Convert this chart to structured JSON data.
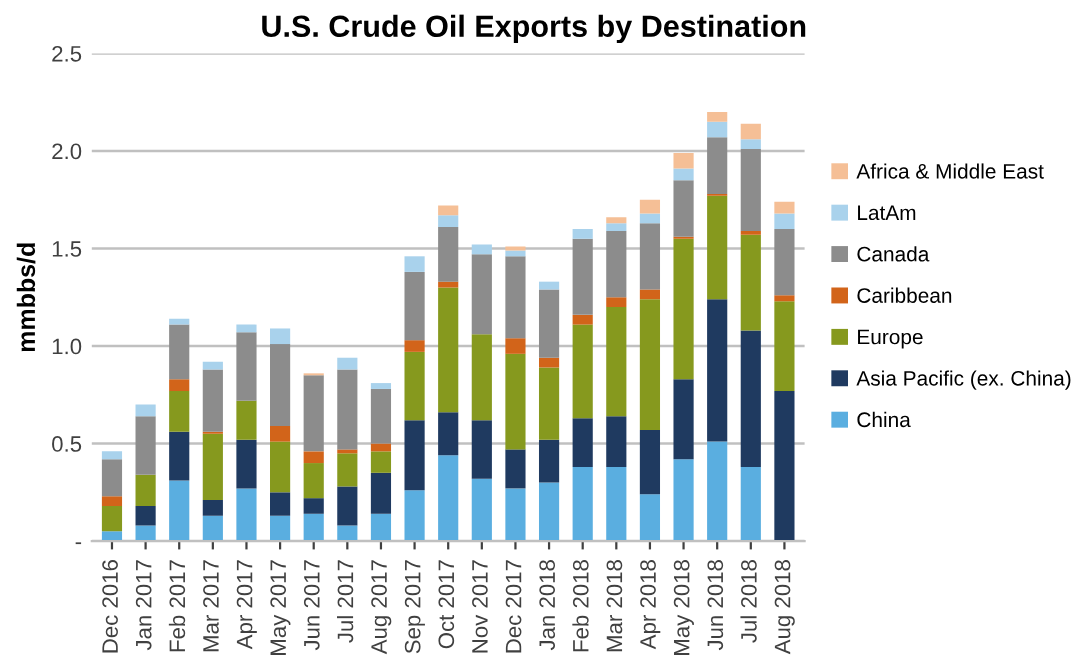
{
  "chart_data": {
    "type": "bar",
    "stacked": true,
    "title": "U.S. Crude Oil Exports by Destination",
    "ylabel": "mmbbs/d",
    "categories": [
      "Dec 2016",
      "Jan 2017",
      "Feb 2017",
      "Mar 2017",
      "Apr 2017",
      "May 2017",
      "Jun 2017",
      "Jul 2017",
      "Aug 2017",
      "Sep 2017",
      "Oct 2017",
      "Nov 2017",
      "Dec 2017",
      "Jan 2018",
      "Feb 2018",
      "Mar 2018",
      "Apr 2018",
      "May 2018",
      "Jun 2018",
      "Jul 2018",
      "Aug 2018"
    ],
    "series": [
      {
        "name": "China",
        "color": "#5aaee0",
        "values": [
          0.05,
          0.08,
          0.31,
          0.13,
          0.27,
          0.13,
          0.14,
          0.08,
          0.14,
          0.26,
          0.44,
          0.32,
          0.27,
          0.3,
          0.38,
          0.38,
          0.24,
          0.42,
          0.51,
          0.38,
          0
        ]
      },
      {
        "name": "Asia Pacific (ex. China)",
        "color": "#1f3a60",
        "values": [
          0,
          0.1,
          0.25,
          0.08,
          0.25,
          0.12,
          0.08,
          0.2,
          0.21,
          0.36,
          0.22,
          0.3,
          0.2,
          0.22,
          0.25,
          0.26,
          0.33,
          0.41,
          0.73,
          0.7,
          0.77
        ]
      },
      {
        "name": "Europe",
        "color": "#86991e",
        "values": [
          0.13,
          0.16,
          0.21,
          0.34,
          0.2,
          0.26,
          0.18,
          0.17,
          0.11,
          0.35,
          0.64,
          0.44,
          0.49,
          0.37,
          0.48,
          0.56,
          0.67,
          0.72,
          0.53,
          0.49,
          0.46
        ]
      },
      {
        "name": "Caribbean",
        "color": "#d2641a",
        "values": [
          0.05,
          0,
          0.06,
          0.01,
          0,
          0.08,
          0.06,
          0.02,
          0.04,
          0.06,
          0.03,
          0,
          0.08,
          0.05,
          0.05,
          0.05,
          0.05,
          0.01,
          0.01,
          0.02,
          0.03
        ]
      },
      {
        "name": "Canada",
        "color": "#8c8c8c",
        "values": [
          0.19,
          0.3,
          0.28,
          0.32,
          0.35,
          0.42,
          0.39,
          0.41,
          0.28,
          0.35,
          0.28,
          0.41,
          0.42,
          0.35,
          0.39,
          0.34,
          0.34,
          0.29,
          0.29,
          0.42,
          0.34
        ]
      },
      {
        "name": "LatAm",
        "color": "#a9d2ec",
        "values": [
          0.04,
          0.06,
          0.03,
          0.04,
          0.04,
          0.08,
          0,
          0.06,
          0.03,
          0.08,
          0.06,
          0.05,
          0.03,
          0.04,
          0.05,
          0.04,
          0.05,
          0.06,
          0.08,
          0.05,
          0.08
        ]
      },
      {
        "name": "Africa & Middle East",
        "color": "#f5bf96",
        "values": [
          0,
          0,
          0,
          0,
          0,
          0,
          0.01,
          0,
          0,
          0,
          0.05,
          0,
          0.02,
          0,
          0,
          0.03,
          0.07,
          0.08,
          0.05,
          0.08,
          0.06
        ]
      }
    ],
    "ylim": [
      0,
      2.5
    ],
    "yticks": [
      {
        "value": 0,
        "label": "-"
      },
      {
        "value": 0.5,
        "label": "0.5"
      },
      {
        "value": 1.0,
        "label": "1.0"
      },
      {
        "value": 1.5,
        "label": "1.5"
      },
      {
        "value": 2.0,
        "label": "2.0"
      },
      {
        "value": 2.5,
        "label": "2.5"
      }
    ],
    "grid": "y",
    "legend": "right"
  }
}
